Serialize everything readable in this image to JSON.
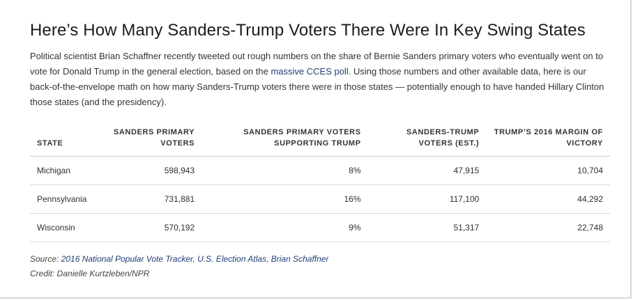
{
  "title": "Here’s How Many Sanders-Trump Voters There Were In Key Swing States",
  "intro": {
    "part1": "Political scientist Brian Schaffner recently tweeted out rough numbers on the share of Bernie Sanders primary voters who eventually went on to vote for Donald Trump in the general election, based on the ",
    "link_text": "massive CCES poll",
    "part2": ". Using those numbers and other available data, here is our back-of-the-envelope math on how many Sanders-Trump voters there were in those states — potentially enough to have handed Hillary Clinton those states (and the presidency)."
  },
  "table": {
    "headers": [
      "State",
      "Sanders primary voters",
      "Sanders primary voters supporting Trump",
      "Sanders-Trump voters (est.)",
      "Trump’s 2016 margin of victory"
    ],
    "rows": [
      [
        "Michigan",
        "598,943",
        "8%",
        "47,915",
        "10,704"
      ],
      [
        "Pennsylvania",
        "731,881",
        "16%",
        "117,100",
        "44,292"
      ],
      [
        "Wisconsin",
        "570,192",
        "9%",
        "51,317",
        "22,748"
      ]
    ]
  },
  "source": {
    "label": "Source: ",
    "link_text": "2016 National Popular Vote Tracker, U.S. Election Atlas, Brian Schaffner"
  },
  "credit": "Credit: Danielle Kurtzleben/NPR",
  "colors": {
    "link": "#1f3e73",
    "rule": "#d9d9d9"
  }
}
